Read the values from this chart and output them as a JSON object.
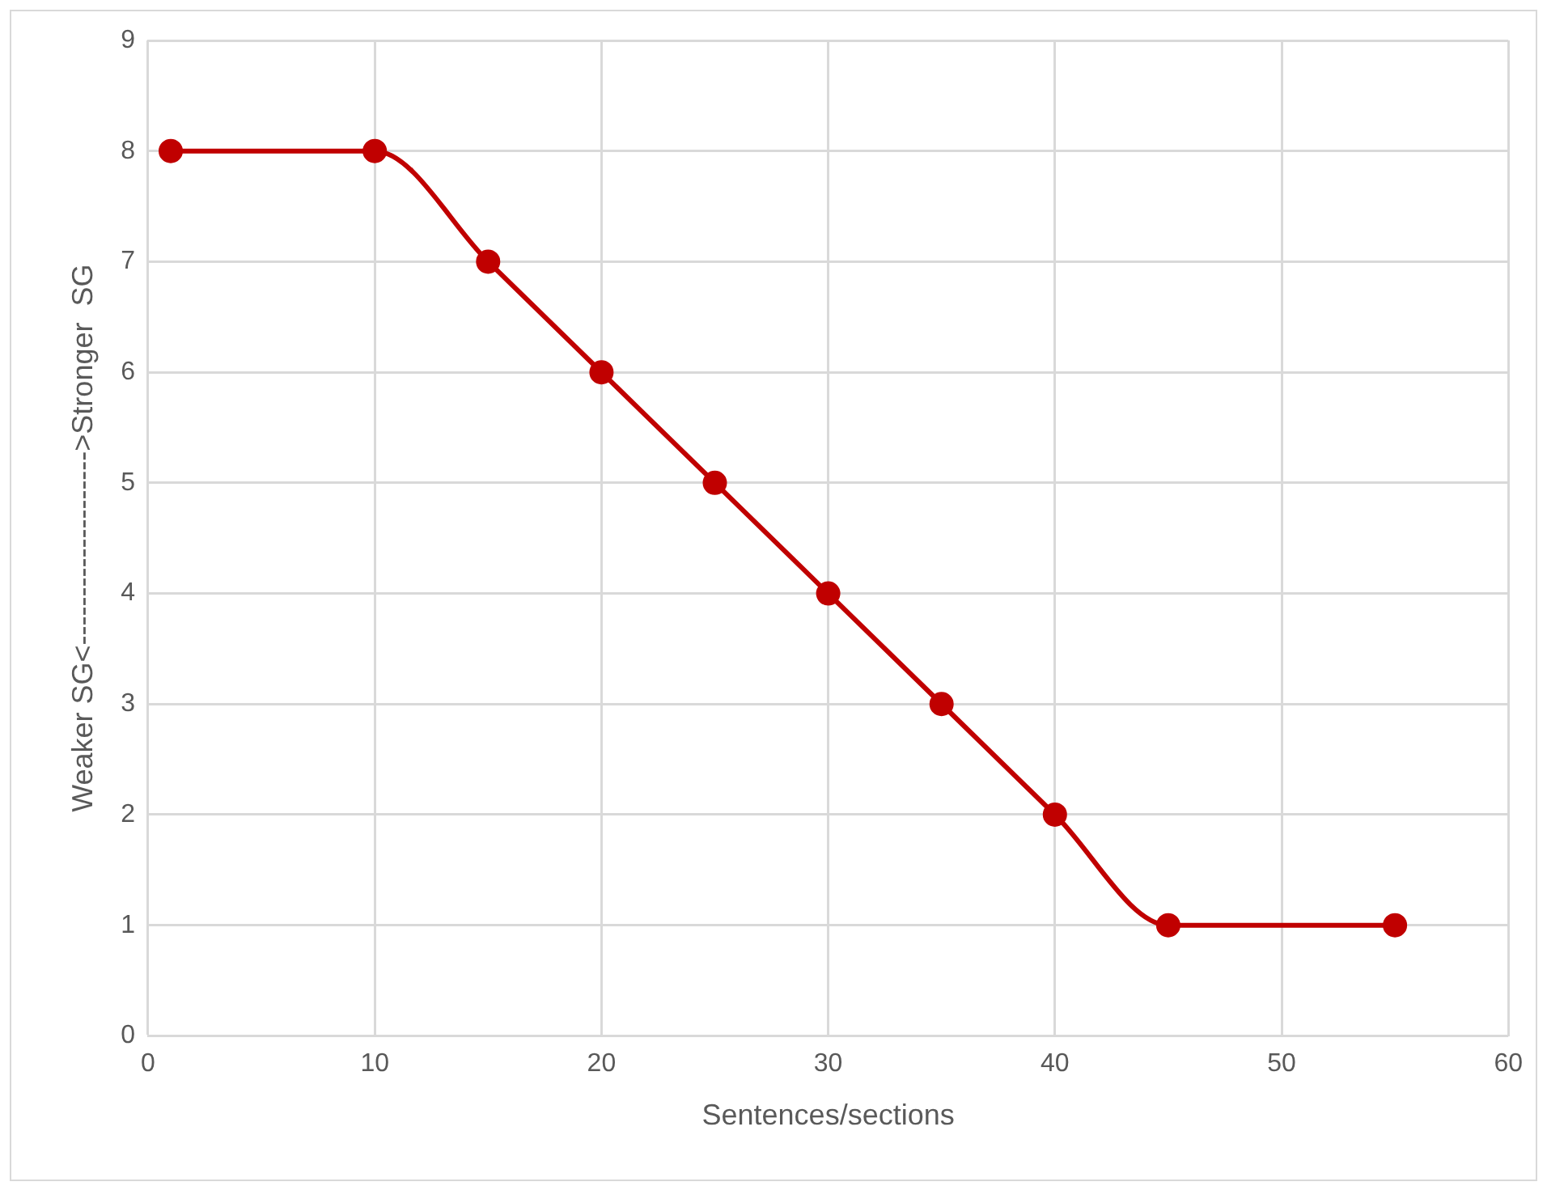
{
  "chart_data": {
    "type": "line",
    "xlabel": "Sentences/sections",
    "ylabel": "Weaker SG<-------------------->Stronger  SG",
    "x": [
      1,
      10,
      15,
      20,
      25,
      30,
      35,
      40,
      45,
      55
    ],
    "series": [
      {
        "color": "#c00000",
        "values": [
          8,
          8,
          7,
          6,
          5,
          4,
          3,
          2,
          1,
          1
        ]
      }
    ],
    "xlim": [
      0,
      60
    ],
    "xticks": [
      0,
      10,
      20,
      30,
      40,
      50,
      60
    ],
    "ylim": [
      0,
      9
    ],
    "yticks": [
      0,
      1,
      2,
      3,
      4,
      5,
      6,
      7,
      8,
      9
    ],
    "grid": true,
    "legend": false,
    "marker": "circle",
    "line_style": "solid"
  }
}
